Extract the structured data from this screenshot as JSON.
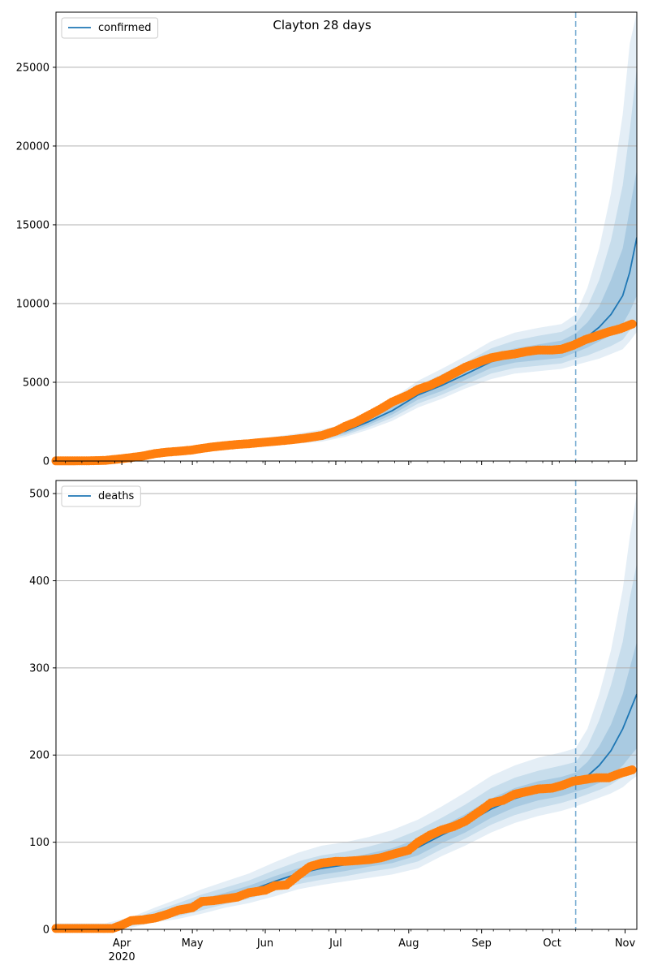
{
  "title": "Clayton 28 days",
  "colors": {
    "model": "#1f77b4",
    "observed": "#ff7f0e",
    "band": "#1f77b4",
    "grid": "#b0b0b0"
  },
  "x_axis": {
    "start": "2020-03-04",
    "end": "2020-11-06",
    "month_ticks": [
      {
        "date": "2020-04-01",
        "label": "Apr",
        "sublabel": "2020"
      },
      {
        "date": "2020-05-01",
        "label": "May",
        "sublabel": ""
      },
      {
        "date": "2020-06-01",
        "label": "Jun",
        "sublabel": ""
      },
      {
        "date": "2020-07-01",
        "label": "Jul",
        "sublabel": ""
      },
      {
        "date": "2020-08-01",
        "label": "Aug",
        "sublabel": ""
      },
      {
        "date": "2020-09-01",
        "label": "Sep",
        "sublabel": ""
      },
      {
        "date": "2020-10-01",
        "label": "Oct",
        "sublabel": ""
      },
      {
        "date": "2020-11-01",
        "label": "Nov",
        "sublabel": ""
      }
    ],
    "forecast_start": "2020-10-11"
  },
  "chart_data": [
    {
      "type": "line",
      "legend": "confirmed",
      "legend_position": "top-left",
      "grid": "horizontal",
      "ylim": [
        0,
        28500
      ],
      "yticks": [
        0,
        5000,
        10000,
        15000,
        20000,
        25000
      ],
      "model": {
        "x": [
          "2020-03-04",
          "2020-03-15",
          "2020-03-25",
          "2020-04-05",
          "2020-04-15",
          "2020-04-25",
          "2020-05-05",
          "2020-05-15",
          "2020-05-25",
          "2020-06-05",
          "2020-06-15",
          "2020-06-25",
          "2020-07-05",
          "2020-07-15",
          "2020-07-25",
          "2020-08-05",
          "2020-08-15",
          "2020-08-25",
          "2020-09-05",
          "2020-09-15",
          "2020-09-25",
          "2020-10-05",
          "2020-10-11",
          "2020-10-16",
          "2020-10-21",
          "2020-10-26",
          "2020-10-31",
          "2020-11-03",
          "2020-11-06"
        ],
        "y": [
          0,
          0,
          30,
          200,
          450,
          650,
          800,
          950,
          1050,
          1250,
          1400,
          1550,
          1900,
          2500,
          3200,
          4200,
          4800,
          5500,
          6300,
          6700,
          6900,
          7100,
          7500,
          7900,
          8500,
          9300,
          10500,
          12000,
          14200
        ],
        "band_inner": {
          "low": [
            0,
            0,
            20,
            170,
            400,
            600,
            740,
            880,
            980,
            1150,
            1280,
            1420,
            1750,
            2300,
            2950,
            3900,
            4450,
            5150,
            5900,
            6250,
            6400,
            6550,
            6900,
            7200,
            7600,
            8000,
            8700,
            9500,
            10500
          ],
          "high": [
            0,
            0,
            40,
            230,
            500,
            700,
            860,
            1020,
            1130,
            1350,
            1520,
            1700,
            2050,
            2700,
            3450,
            4500,
            5150,
            5850,
            6700,
            7150,
            7400,
            7650,
            8100,
            8800,
            9800,
            11500,
            13500,
            16000,
            18500
          ]
        },
        "band_mid": {
          "low": [
            0,
            0,
            15,
            150,
            370,
            560,
            700,
            830,
            920,
            1080,
            1200,
            1330,
            1650,
            2150,
            2750,
            3650,
            4200,
            4850,
            5550,
            5900,
            6050,
            6200,
            6500,
            6700,
            7000,
            7300,
            7700,
            8300,
            9000
          ],
          "high": [
            0,
            0,
            50,
            260,
            540,
            750,
            920,
            1090,
            1220,
            1450,
            1650,
            1850,
            2200,
            2900,
            3700,
            4800,
            5500,
            6250,
            7150,
            7650,
            7950,
            8200,
            8700,
            9800,
            11500,
            14000,
            17500,
            21000,
            25000
          ]
        },
        "band_outer": {
          "low": [
            0,
            0,
            10,
            130,
            340,
            520,
            650,
            780,
            860,
            1000,
            1110,
            1230,
            1530,
            2000,
            2550,
            3400,
            3950,
            4600,
            5200,
            5550,
            5700,
            5850,
            6100,
            6300,
            6500,
            6800,
            7100,
            7600,
            8200
          ],
          "high": [
            0,
            0,
            60,
            290,
            580,
            800,
            980,
            1160,
            1300,
            1550,
            1770,
            1990,
            2350,
            3100,
            3950,
            5100,
            5850,
            6650,
            7600,
            8150,
            8450,
            8700,
            9300,
            11000,
            13500,
            17000,
            22000,
            26500,
            28500
          ]
        }
      },
      "observed": {
        "x": [
          "2020-03-04",
          "2020-03-10",
          "2020-03-20",
          "2020-03-25",
          "2020-04-01",
          "2020-04-05",
          "2020-04-10",
          "2020-04-15",
          "2020-04-20",
          "2020-04-25",
          "2020-05-01",
          "2020-05-05",
          "2020-05-10",
          "2020-05-15",
          "2020-05-20",
          "2020-05-25",
          "2020-06-01",
          "2020-06-05",
          "2020-06-10",
          "2020-06-15",
          "2020-06-20",
          "2020-06-25",
          "2020-07-01",
          "2020-07-05",
          "2020-07-10",
          "2020-07-15",
          "2020-07-20",
          "2020-07-25",
          "2020-08-01",
          "2020-08-05",
          "2020-08-10",
          "2020-08-15",
          "2020-08-20",
          "2020-08-25",
          "2020-09-01",
          "2020-09-05",
          "2020-09-10",
          "2020-09-15",
          "2020-09-20",
          "2020-09-25",
          "2020-10-01",
          "2020-10-05",
          "2020-10-10",
          "2020-10-15",
          "2020-10-20",
          "2020-10-25",
          "2020-10-30",
          "2020-11-04"
        ],
        "y": [
          10,
          10,
          20,
          40,
          150,
          220,
          320,
          470,
          560,
          620,
          700,
          800,
          900,
          980,
          1050,
          1100,
          1200,
          1250,
          1320,
          1400,
          1500,
          1620,
          1900,
          2200,
          2500,
          2900,
          3300,
          3750,
          4200,
          4550,
          4800,
          5150,
          5550,
          5950,
          6350,
          6550,
          6700,
          6800,
          6950,
          7050,
          7050,
          7100,
          7350,
          7700,
          7950,
          8200,
          8400,
          8700
        ]
      }
    },
    {
      "type": "line",
      "legend": "deaths",
      "legend_position": "top-left",
      "grid": "horizontal",
      "ylim": [
        0,
        515
      ],
      "yticks": [
        0,
        100,
        200,
        300,
        400,
        500
      ],
      "model": {
        "x": [
          "2020-03-04",
          "2020-03-15",
          "2020-03-25",
          "2020-04-05",
          "2020-04-15",
          "2020-04-25",
          "2020-05-05",
          "2020-05-15",
          "2020-05-25",
          "2020-06-05",
          "2020-06-15",
          "2020-06-25",
          "2020-07-05",
          "2020-07-15",
          "2020-07-25",
          "2020-08-05",
          "2020-08-15",
          "2020-08-25",
          "2020-09-05",
          "2020-09-15",
          "2020-09-25",
          "2020-10-05",
          "2020-10-11",
          "2020-10-16",
          "2020-10-21",
          "2020-10-26",
          "2020-10-31",
          "2020-11-03",
          "2020-11-06"
        ],
        "y": [
          0,
          0,
          2,
          8,
          15,
          22,
          30,
          37,
          44,
          55,
          64,
          70,
          74,
          79,
          84,
          94,
          108,
          121,
          138,
          150,
          158,
          163,
          168,
          176,
          188,
          205,
          230,
          250,
          270
        ],
        "band_inner": {
          "low": [
            0,
            0,
            1,
            6,
            12,
            18,
            26,
            33,
            39,
            49,
            58,
            63,
            67,
            72,
            76,
            85,
            99,
            111,
            128,
            140,
            148,
            153,
            158,
            162,
            168,
            176,
            188,
            198,
            208
          ],
          "high": [
            0,
            0,
            3,
            10,
            18,
            26,
            35,
            42,
            50,
            61,
            70,
            77,
            81,
            87,
            93,
            104,
            118,
            132,
            150,
            162,
            170,
            175,
            180,
            192,
            210,
            235,
            270,
            300,
            330
          ]
        },
        "band_mid": {
          "low": [
            0,
            0,
            0,
            4,
            10,
            15,
            22,
            29,
            35,
            44,
            52,
            57,
            61,
            66,
            70,
            78,
            92,
            104,
            120,
            131,
            139,
            145,
            150,
            155,
            160,
            166,
            175,
            183,
            190
          ],
          "high": [
            0,
            0,
            4,
            12,
            21,
            30,
            40,
            48,
            56,
            68,
            78,
            85,
            89,
            95,
            102,
            114,
            128,
            143,
            162,
            174,
            182,
            188,
            192,
            210,
            240,
            280,
            330,
            380,
            420
          ]
        },
        "band_outer": {
          "low": [
            0,
            0,
            0,
            2,
            8,
            12,
            18,
            25,
            30,
            38,
            46,
            51,
            55,
            59,
            63,
            70,
            84,
            96,
            111,
            122,
            130,
            136,
            141,
            146,
            151,
            156,
            163,
            170,
            176
          ],
          "high": [
            7,
            7,
            7,
            14,
            25,
            35,
            46,
            55,
            64,
            77,
            88,
            96,
            100,
            106,
            114,
            126,
            141,
            157,
            176,
            188,
            197,
            203,
            208,
            230,
            270,
            320,
            390,
            450,
            500
          ]
        }
      },
      "observed": {
        "x": [
          "2020-03-04",
          "2020-03-20",
          "2020-03-28",
          "2020-04-01",
          "2020-04-05",
          "2020-04-10",
          "2020-04-15",
          "2020-04-20",
          "2020-04-25",
          "2020-05-01",
          "2020-05-05",
          "2020-05-10",
          "2020-05-15",
          "2020-05-20",
          "2020-05-25",
          "2020-06-01",
          "2020-06-05",
          "2020-06-10",
          "2020-06-15",
          "2020-06-20",
          "2020-06-25",
          "2020-07-01",
          "2020-07-05",
          "2020-07-10",
          "2020-07-15",
          "2020-07-20",
          "2020-07-25",
          "2020-08-01",
          "2020-08-05",
          "2020-08-10",
          "2020-08-15",
          "2020-08-20",
          "2020-08-25",
          "2020-09-01",
          "2020-09-05",
          "2020-09-10",
          "2020-09-15",
          "2020-09-20",
          "2020-09-25",
          "2020-10-01",
          "2020-10-05",
          "2020-10-10",
          "2020-10-15",
          "2020-10-20",
          "2020-10-25",
          "2020-10-30",
          "2020-11-04"
        ],
        "y": [
          1,
          1,
          1,
          5,
          10,
          11,
          13,
          17,
          22,
          25,
          32,
          33,
          35,
          37,
          42,
          45,
          50,
          51,
          62,
          72,
          76,
          78,
          78,
          79,
          80,
          82,
          86,
          91,
          100,
          108,
          114,
          118,
          124,
          137,
          145,
          148,
          155,
          158,
          161,
          162,
          165,
          170,
          172,
          174,
          174,
          179,
          183
        ]
      }
    }
  ]
}
